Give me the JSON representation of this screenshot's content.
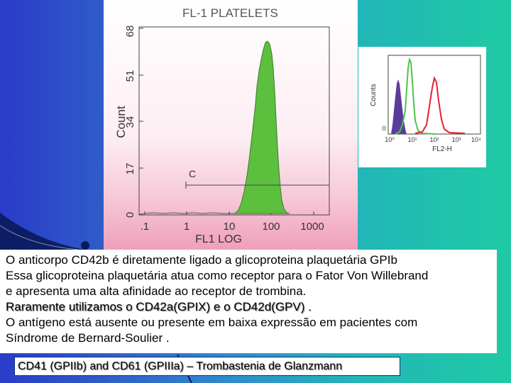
{
  "main_chart": {
    "title": "FL-1 PLATELETS",
    "ylabel": "Count",
    "xlabel": "FL1 LOG",
    "marker_label": "C",
    "y_ticks": [
      "0",
      "17",
      "34",
      "51",
      "68"
    ],
    "x_ticks": [
      ".1",
      "1",
      "10",
      "100",
      "1000"
    ],
    "colors": {
      "fill": "#5cbf3e",
      "background_bottom": "#ef9fbb"
    }
  },
  "inset_chart": {
    "ylabel": "Counts",
    "xlabel": "FL2-H",
    "x_ticks": [
      "10⁰",
      "10¹",
      "10²",
      "10³",
      "10⁴"
    ],
    "y_ticks": [
      "0"
    ],
    "colors": {
      "purple": "#5a3d9a",
      "green": "#4cc44c",
      "red": "#e0242e"
    }
  },
  "text": {
    "line1": "O anticorpo CD42b é diretamente ligado a glicoproteina plaquetária GPIb",
    "line2": "Essa glicoproteina plaquetária atua como receptor para o Fator Von Willebrand",
    "line3": "e apresenta uma alta afinidade ao receptor de trombina.",
    "line4": "Raramente utilizamos o CD42a(GPIX) e o CD42d(GPV) .",
    "line5": "O antígeno está ausente ou presente em baixa expressão em pacientes com",
    "line6": "Síndrome de Bernard-Soulier ."
  },
  "footer": "CD41 (GPIIb) and CD61 (GPIIIa) – Trombastenia de Glanzmann",
  "colors": {
    "bg_left": "#2a3cc8",
    "bg_right": "#1fcaa4",
    "swoosh": "#0a1a5a"
  }
}
